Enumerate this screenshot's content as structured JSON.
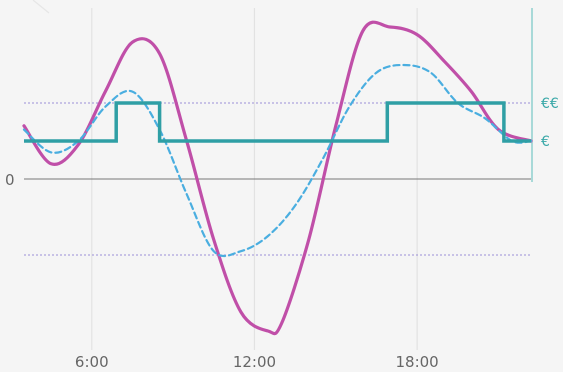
{
  "chart_data": {
    "type": "line",
    "title": "",
    "xlabel": "",
    "ylabel": "",
    "x_ticks": [
      "6:00",
      "12:00",
      "18:00"
    ],
    "y_tick_labels": [
      "0"
    ],
    "price_labels": [
      "€€",
      "€"
    ],
    "xlim": [
      3.5,
      22.2
    ],
    "ylim": [
      -4.5,
      4.5
    ],
    "grid": true,
    "legend": "none",
    "series": [
      {
        "color": "#c04fa8",
        "style": "solid",
        "x": [
          3.5,
          4.5,
          5.5,
          6.5,
          7.5,
          8.5,
          9.5,
          10.5,
          11.5,
          12.5,
          13.0,
          14.0,
          15.0,
          16.0,
          17.0,
          18.0,
          19.0,
          20.0,
          21.0,
          22.2
        ],
        "y": [
          1.4,
          0.4,
          0.9,
          2.3,
          3.6,
          3.3,
          1.0,
          -1.6,
          -3.5,
          -4.0,
          -3.8,
          -1.6,
          1.4,
          3.9,
          4.0,
          3.8,
          3.1,
          2.3,
          1.3,
          1.0
        ]
      },
      {
        "color": "#4aaee0",
        "style": "dashed",
        "x": [
          3.5,
          4.5,
          5.5,
          6.5,
          7.5,
          8.5,
          9.5,
          10.5,
          11.5,
          12.5,
          13.5,
          14.5,
          15.5,
          16.5,
          17.5,
          18.5,
          19.5,
          20.5,
          21.5,
          22.2
        ],
        "y": [
          1.3,
          0.7,
          1.0,
          1.9,
          2.3,
          1.3,
          -0.4,
          -1.9,
          -1.9,
          -1.5,
          -0.7,
          0.5,
          1.9,
          2.8,
          3.0,
          2.8,
          2.0,
          1.6,
          1.0,
          1.0
        ]
      },
      {
        "color": "#2f9fa5",
        "style": "step",
        "x": [
          3.5,
          6.9,
          6.9,
          8.5,
          8.5,
          16.9,
          16.9,
          21.2,
          21.2,
          22.2
        ],
        "y": [
          1.0,
          1.0,
          2.0,
          2.0,
          1.0,
          1.0,
          2.0,
          2.0,
          1.0,
          1.0
        ]
      }
    ]
  }
}
